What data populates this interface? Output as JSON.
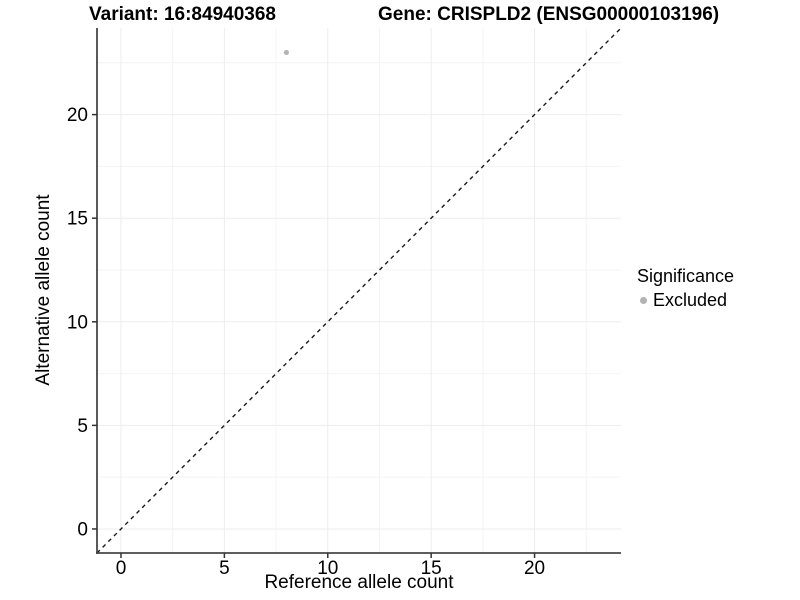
{
  "titles": {
    "variant": "Variant: 16:84940368",
    "gene": "Gene: CRISPLD2 (ENSG00000103196)"
  },
  "chart_data": {
    "type": "scatter",
    "xlabel": "Reference allele count",
    "ylabel": "Alternative allele count",
    "xlim": [
      -1.16,
      24.18
    ],
    "ylim": [
      -1.16,
      24.18
    ],
    "xticks": [
      0,
      5,
      10,
      15,
      20
    ],
    "yticks": [
      0,
      5,
      10,
      15,
      20
    ],
    "xminor": [
      2.5,
      7.5,
      12.5,
      17.5,
      22.5
    ],
    "yminor": [
      2.5,
      7.5,
      12.5,
      17.5,
      22.5
    ],
    "grid": "major and minor, very light gray",
    "points": [
      {
        "x": 8,
        "y": 23,
        "series": "Excluded"
      }
    ],
    "point_radius": 2.6,
    "reference_line": {
      "type": "identity",
      "style": "dashed"
    },
    "legend": {
      "title": "Significance",
      "position": "right",
      "entries": [
        {
          "label": "Excluded",
          "color": "#b3b3b3"
        }
      ]
    },
    "colors": {
      "point": "#b3b3b3",
      "grid_major": "#ededed",
      "grid_minor": "#f4f4f4",
      "axis": "#474747",
      "tick": "#333333",
      "reference_line": "#1a1a1a",
      "text": "#000000",
      "background": "#ffffff"
    }
  }
}
